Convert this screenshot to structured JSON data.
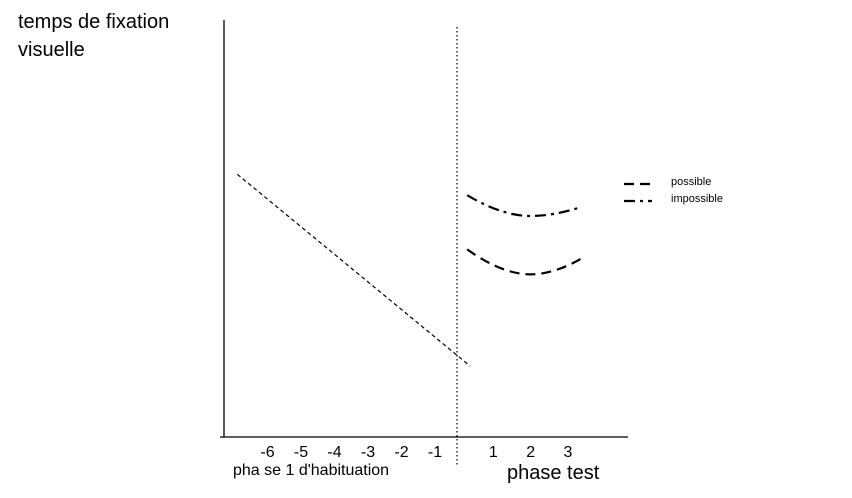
{
  "chart_data": {
    "type": "line",
    "ylabel_lines": [
      "temps de fixation",
      "visuelle"
    ],
    "xlabel_habituation": "pha se 1 d'habituation",
    "xlabel_test": "phase test",
    "habituation_ticks": [
      "-6",
      "-5",
      "-4",
      "-3",
      "-2",
      "-1"
    ],
    "test_ticks": [
      "1",
      "2",
      "3"
    ],
    "grid": false,
    "legend_position": "right",
    "habituation_series": {
      "style": "short-dash",
      "points": [
        {
          "x": -6.9,
          "y": 0.63
        },
        {
          "x": 0.05,
          "y": 0.17
        }
      ]
    },
    "series": [
      {
        "name": "possible",
        "style": "long-dash",
        "points": [
          {
            "x": 0.3,
            "y": 0.45
          },
          {
            "x": 2,
            "y": 0.39
          },
          {
            "x": 3.4,
            "y": 0.43
          }
        ]
      },
      {
        "name": "impossible",
        "style": "dash-dot",
        "points": [
          {
            "x": 0.3,
            "y": 0.58
          },
          {
            "x": 2,
            "y": 0.53
          },
          {
            "x": 3.3,
            "y": 0.55
          }
        ]
      }
    ]
  }
}
